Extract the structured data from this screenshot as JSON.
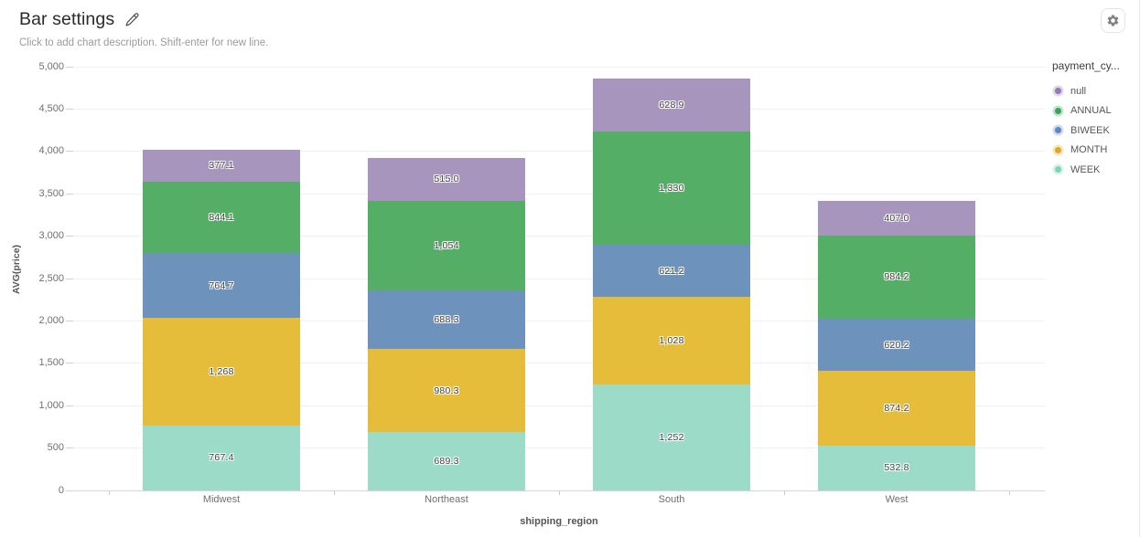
{
  "header": {
    "title": "Bar settings",
    "subtitle": "Click to add chart description. Shift-enter for new line.",
    "edit_icon": "pencil-icon",
    "settings_icon": "gear-icon"
  },
  "chart_data": {
    "type": "bar",
    "stacked": true,
    "title": "",
    "xlabel": "shipping_region",
    "ylabel": "AVG(price)",
    "ylim": [
      0,
      5000
    ],
    "ytick_step": 500,
    "ytick_labels": [
      "0",
      "500",
      "1,000",
      "1,500",
      "2,000",
      "2,500",
      "3,000",
      "3,500",
      "4,000",
      "4,500",
      "5,000"
    ],
    "grid": true,
    "categories": [
      "Midwest",
      "Northeast",
      "South",
      "West"
    ],
    "series": [
      {
        "name": "null",
        "color": "#a795bd",
        "legend_color": "#9678b2",
        "values": [
          377.1,
          515.0,
          628.9,
          407.0
        ],
        "labels": [
          "377.1",
          "515.0",
          "628.9",
          "407.0"
        ]
      },
      {
        "name": "ANNUAL",
        "color": "#55ae65",
        "legend_color": "#3ca45a",
        "values": [
          844.1,
          1054,
          1330,
          984.2
        ],
        "labels": [
          "844.1",
          "1,054",
          "1,330",
          "984.2"
        ]
      },
      {
        "name": "BIWEEK",
        "color": "#6d92bc",
        "legend_color": "#5d88c0",
        "values": [
          764.7,
          688.3,
          621.2,
          620.2
        ],
        "labels": [
          "764.7",
          "688.3",
          "621.2",
          "620.2"
        ]
      },
      {
        "name": "MONTH",
        "color": "#e6bd3b",
        "legend_color": "#dfab27",
        "values": [
          1268,
          980.3,
          1028,
          874.2
        ],
        "labels": [
          "1,268",
          "980.3",
          "1,028",
          "874.2"
        ]
      },
      {
        "name": "WEEK",
        "color": "#9bdbc7",
        "legend_color": "#7fd3ba",
        "values": [
          767.4,
          689.3,
          1252,
          532.8
        ],
        "labels": [
          "767.4",
          "689.3",
          "1,252",
          "532.8"
        ]
      }
    ],
    "stack_order_bottom_to_top": [
      "WEEK",
      "MONTH",
      "BIWEEK",
      "ANNUAL",
      "null"
    ],
    "legend": {
      "title": "payment_cy...",
      "position": "right"
    }
  }
}
